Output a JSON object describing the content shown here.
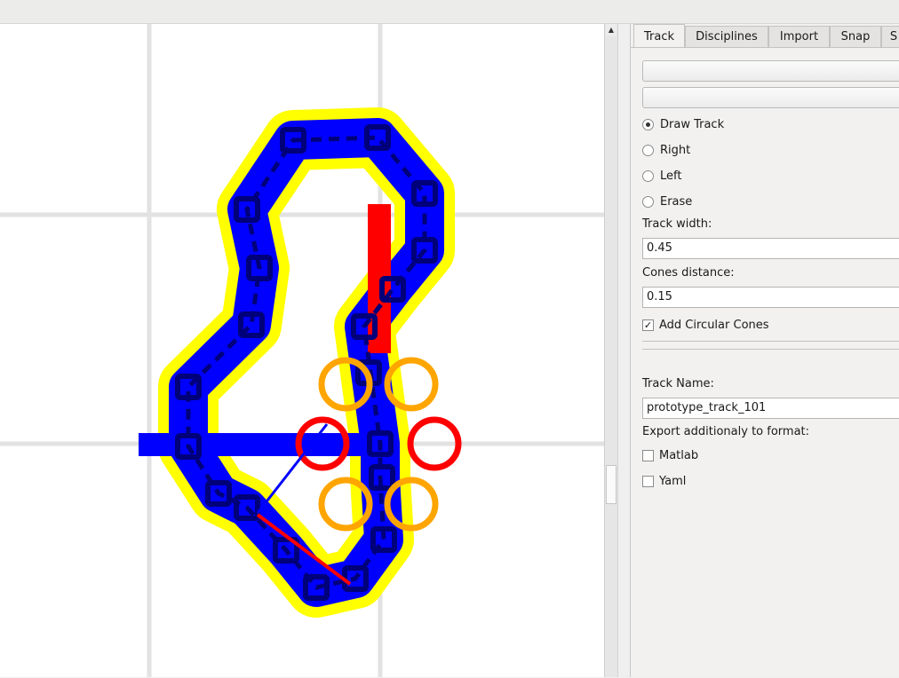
{
  "tabs": [
    {
      "label": "Track",
      "active": true
    },
    {
      "label": "Disciplines",
      "active": false
    },
    {
      "label": "Import",
      "active": false
    },
    {
      "label": "Snap",
      "active": false
    },
    {
      "label": "S",
      "active": false
    }
  ],
  "modes": [
    {
      "label": "Draw Track",
      "selected": true
    },
    {
      "label": "Right",
      "selected": false
    },
    {
      "label": "Left",
      "selected": false
    },
    {
      "label": "Erase",
      "selected": false
    }
  ],
  "track_width": {
    "label": "Track width:",
    "value": "0.45"
  },
  "cones_distance": {
    "label": "Cones distance:",
    "value": "0.15"
  },
  "circular_cones": {
    "label": "Add Circular Cones",
    "checked": true
  },
  "track_name": {
    "label": "Track Name:",
    "value": "prototype_track_101"
  },
  "export": {
    "label": "Export additionaly to format:",
    "options": [
      {
        "label": "Matlab",
        "checked": false
      },
      {
        "label": "Yaml",
        "checked": false
      }
    ]
  },
  "colors": {
    "track_border": "#ffff00",
    "track_fill": "#0000ff",
    "cone_marker": "#00007a",
    "start_line": "#ff0000",
    "orange_circle": "#ffa500",
    "grid": "#e2e2e2"
  }
}
